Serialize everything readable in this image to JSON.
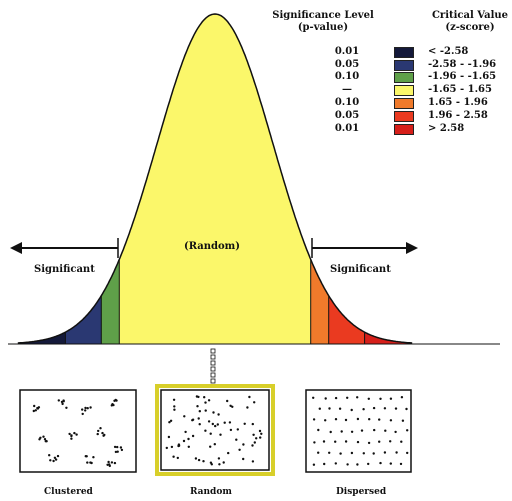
{
  "legend": {
    "p_header_line1": "Significance Level",
    "p_header_line2": "(p-value)",
    "z_header_line1": "Critical Value",
    "z_header_line2": "(z-score)",
    "rows": [
      {
        "p": "0.01",
        "z": "< -2.58",
        "color": "#14193a"
      },
      {
        "p": "0.05",
        "z": "-2.58 - -1.96",
        "color": "#2a3872"
      },
      {
        "p": "0.10",
        "z": "-1.96 - -1.65",
        "color": "#5fa049"
      },
      {
        "p": "—",
        "z": "-1.65 - 1.65",
        "color": "#fbf76a"
      },
      {
        "p": "0.10",
        "z": "1.65 - 1.96",
        "color": "#f07a2b"
      },
      {
        "p": "0.05",
        "z": "1.96 - 2.58",
        "color": "#ea3a20"
      },
      {
        "p": "0.01",
        "z": "> 2.58",
        "color": "#d61f1a"
      }
    ]
  },
  "curve": {
    "random_label": "(Random)",
    "left_label": "Significant",
    "right_label": "Significant"
  },
  "panels": [
    {
      "label": "Clustered"
    },
    {
      "label": "Random"
    },
    {
      "label": "Dispersed"
    }
  ],
  "colors": {
    "highlight_border": "#d8cf2a",
    "outline": "#111111"
  }
}
